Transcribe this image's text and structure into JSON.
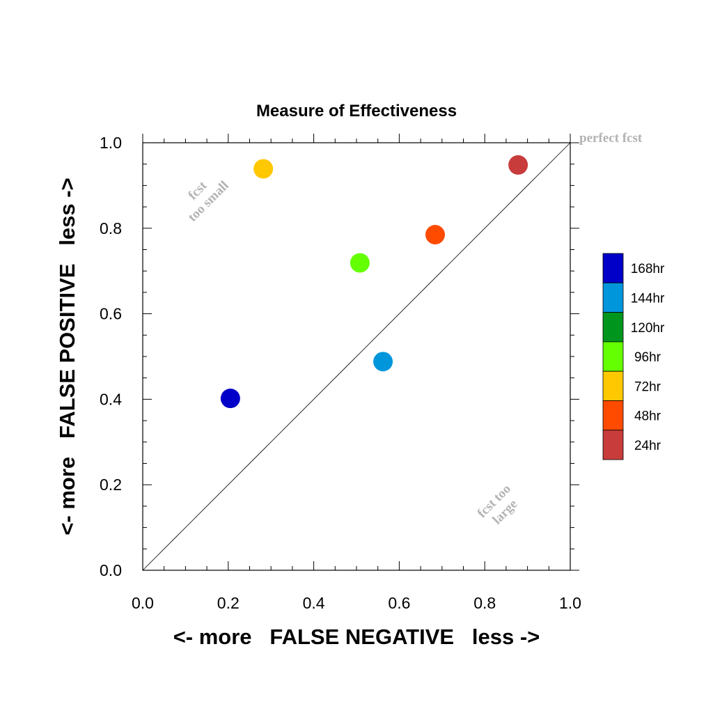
{
  "chart_data": {
    "type": "scatter",
    "title": "Measure of Effectiveness",
    "xlabel": "<- more   FALSE NEGATIVE   less ->",
    "ylabel": "<- more   FALSE POSITIVE   less ->",
    "xlim": [
      0.0,
      1.0
    ],
    "ylim": [
      0.0,
      1.0
    ],
    "x_ticks": [
      "0.0",
      "0.2",
      "0.4",
      "0.6",
      "0.8",
      "1.0"
    ],
    "y_ticks": [
      "0.0",
      "0.2",
      "0.4",
      "0.6",
      "0.8",
      "1.0"
    ],
    "grid": false,
    "reference_line": "diagonal y = x",
    "legend_position": "right",
    "points": [
      {
        "label": "168hr",
        "x": 0.205,
        "y": 0.402,
        "color": "#0000c8"
      },
      {
        "label": "144hr",
        "x": 0.562,
        "y": 0.488,
        "color": "#0096dc"
      },
      {
        "label": "96hr",
        "x": 0.508,
        "y": 0.719,
        "color": "#64ff00"
      },
      {
        "label": "72hr",
        "x": 0.282,
        "y": 0.939,
        "color": "#ffc800"
      },
      {
        "label": "48hr",
        "x": 0.684,
        "y": 0.785,
        "color": "#ff4b00"
      },
      {
        "label": "24hr",
        "x": 0.878,
        "y": 0.948,
        "color": "#c83c3c"
      }
    ],
    "legend": [
      {
        "label": "168hr",
        "color": "#0000c8"
      },
      {
        "label": "144hr",
        "color": "#0096dc"
      },
      {
        "label": "120hr",
        "color": "#00961e"
      },
      {
        "label": "96hr",
        "color": "#64ff00"
      },
      {
        "label": "72hr",
        "color": "#ffc800"
      },
      {
        "label": "48hr",
        "color": "#ff4b00"
      },
      {
        "label": "24hr",
        "color": "#c83c3c"
      }
    ],
    "annotations": {
      "perfect": "perfect fcst",
      "too_small_line1": "fcst",
      "too_small_line2": "too small",
      "too_large_line1": "fcst too",
      "too_large_line2": "large"
    }
  }
}
